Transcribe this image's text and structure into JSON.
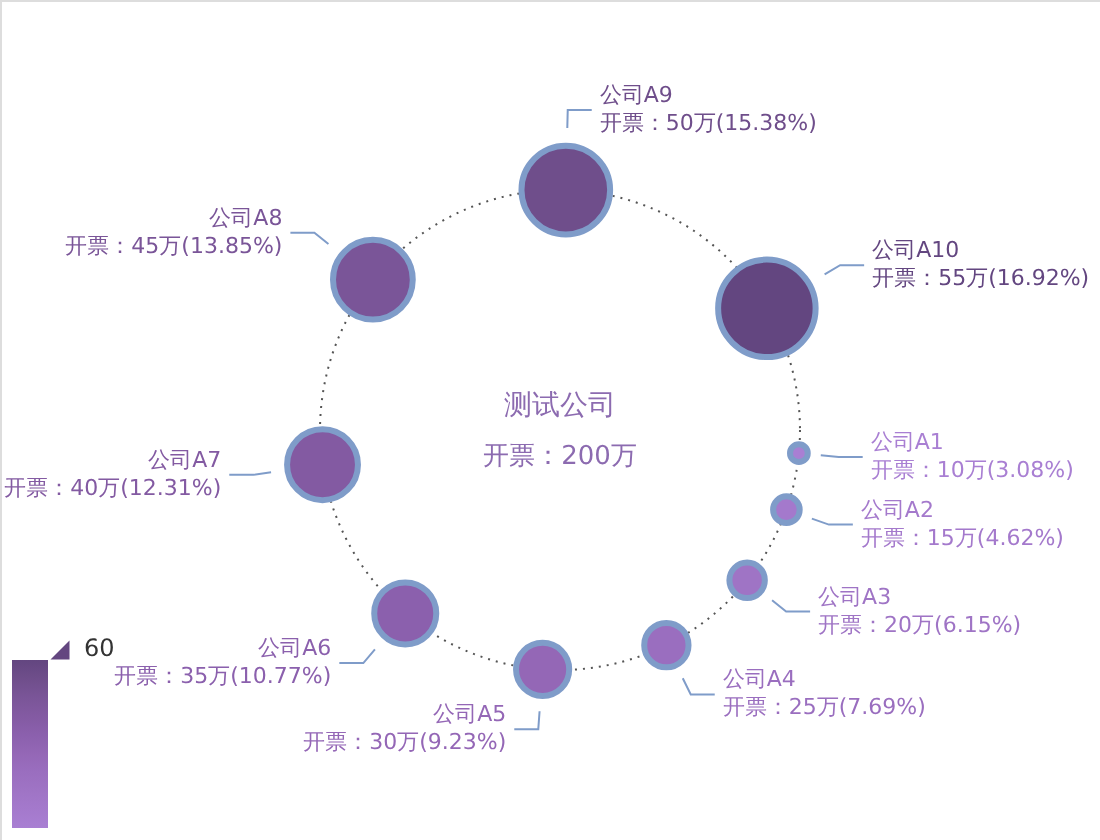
{
  "chart_data": {
    "type": "other",
    "title": "测试公司",
    "subtitle": "开票：200万",
    "categories": [
      "公司A1",
      "公司A2",
      "公司A3",
      "公司A4",
      "公司A5",
      "公司A6",
      "公司A7",
      "公司A8",
      "公司A9",
      "公司A10"
    ],
    "values": [
      10,
      15,
      20,
      25,
      30,
      35,
      40,
      45,
      50,
      55
    ],
    "value_labels": [
      "开票：10万(3.08%)",
      "开票：15万(4.62%)",
      "开票：20万(6.15%)",
      "开票：25万(7.69%)",
      "开票：30万(9.23%)",
      "开票：35万(10.77%)",
      "开票：40万(12.31%)",
      "开票：45万(13.85%)",
      "开票：50万(15.38%)",
      "开票：55万(16.92%)"
    ],
    "colors": [
      "#a97fd3",
      "#a479cc",
      "#9f74c5",
      "#9a6ebf",
      "#9467b6",
      "#8b60ad",
      "#835aa2",
      "#7a5598",
      "#6f4e8b",
      "#634680"
    ],
    "annotations": [
      "60"
    ]
  }
}
